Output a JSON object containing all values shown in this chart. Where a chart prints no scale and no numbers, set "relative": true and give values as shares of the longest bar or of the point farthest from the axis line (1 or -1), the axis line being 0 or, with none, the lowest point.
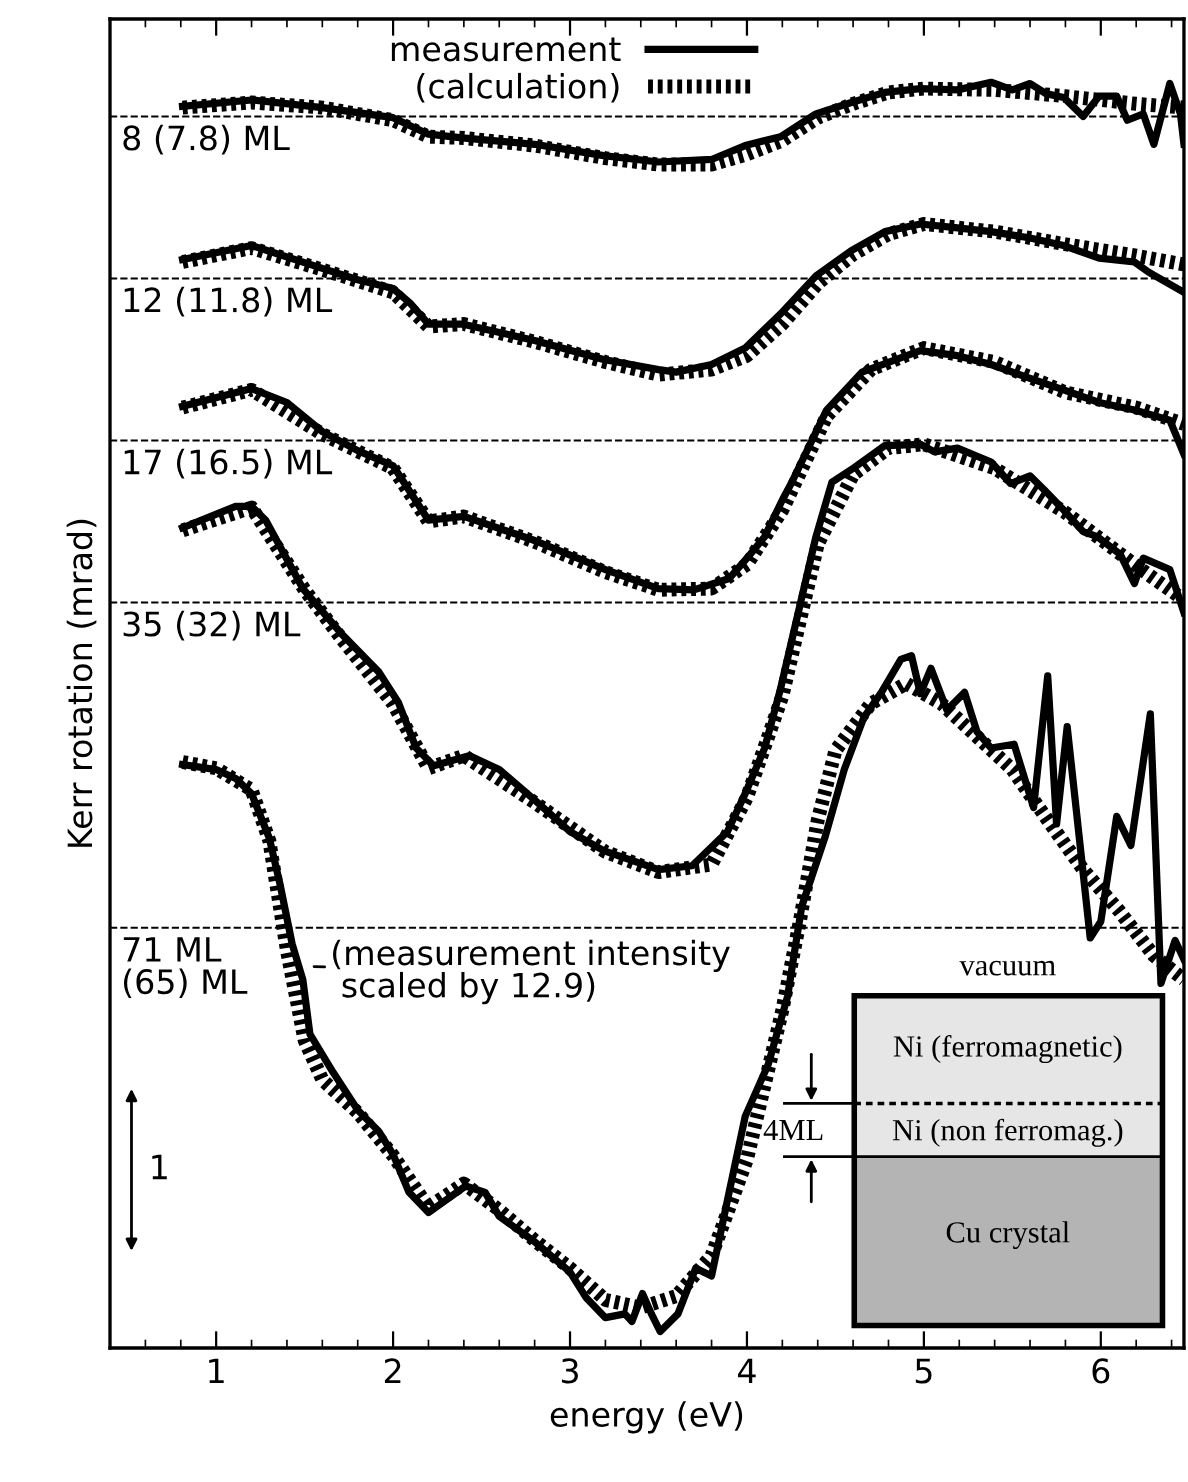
{
  "chart_data": {
    "type": "line",
    "relative": true,
    "xlabel": "energy (eV)",
    "ylabel": "Kerr rotation (mrad)",
    "xlim": [
      0.4,
      6.47
    ],
    "xticks": [
      1,
      2,
      3,
      4,
      5,
      6
    ],
    "tick_labels": "x",
    "grid": false,
    "legend": "top",
    "marker": "none",
    "series": [
      {
        "name": "(calculation)",
        "color": "#000000",
        "line_style": "dotted",
        "x": [
          0.81,
          1.2,
          1.6,
          2.0,
          2.2,
          2.4,
          2.8,
          3.2,
          3.5,
          3.8,
          4.0,
          4.2,
          4.4,
          4.6,
          4.8,
          5.0,
          5.4,
          5.8,
          6.2,
          6.47
        ],
        "values": [
          0.98,
          0.984,
          0.98,
          0.97,
          0.957,
          0.956,
          0.95,
          0.94,
          0.935,
          0.935,
          0.943,
          0.954,
          0.972,
          0.983,
          0.992,
          0.995,
          0.994,
          0.989,
          0.983,
          0.98
        ]
      },
      {
        "name": "measurement",
        "color": "#000000",
        "line_style": "solid",
        "x": [
          0.81,
          1.2,
          1.6,
          2.0,
          2.2,
          2.39,
          2.8,
          3.19,
          3.5,
          3.8,
          3.99,
          4.19,
          4.39,
          4.59,
          4.78,
          4.98,
          5.19,
          5.38,
          5.5,
          5.6,
          5.69,
          5.79,
          5.9,
          5.99,
          6.09,
          6.15,
          6.24,
          6.3,
          6.39,
          6.45,
          6.47
        ],
        "values": [
          0.981,
          0.986,
          0.98,
          0.972,
          0.959,
          0.956,
          0.951,
          0.942,
          0.937,
          0.939,
          0.95,
          0.957,
          0.975,
          0.984,
          0.992,
          0.995,
          0.994,
          1.0,
          0.994,
          0.999,
          0.991,
          0.988,
          0.973,
          0.989,
          0.989,
          0.97,
          0.975,
          0.951,
          0.999,
          0.975,
          0.951
        ]
      },
      {
        "color": "#000000",
        "line_style": "dotted",
        "x": [
          0.81,
          1.2,
          1.6,
          2.0,
          2.2,
          2.4,
          2.8,
          3.2,
          3.5,
          3.8,
          4.0,
          4.2,
          4.4,
          4.6,
          4.8,
          5.0,
          5.4,
          5.8,
          6.2,
          6.47
        ],
        "values": [
          0.858,
          0.869,
          0.852,
          0.834,
          0.807,
          0.809,
          0.795,
          0.779,
          0.769,
          0.773,
          0.784,
          0.809,
          0.841,
          0.864,
          0.88,
          0.888,
          0.882,
          0.872,
          0.863,
          0.856
        ]
      },
      {
        "color": "#000000",
        "line_style": "solid",
        "x": [
          0.81,
          1.2,
          1.6,
          1.8,
          2.0,
          2.1,
          2.2,
          2.39,
          2.8,
          3.19,
          3.5,
          3.6,
          3.8,
          3.99,
          4.19,
          4.39,
          4.59,
          4.78,
          4.98,
          5.19,
          5.38,
          5.6,
          5.79,
          5.99,
          6.19,
          6.27,
          6.47
        ],
        "values": [
          0.86,
          0.871,
          0.853,
          0.844,
          0.837,
          0.825,
          0.809,
          0.809,
          0.796,
          0.781,
          0.773,
          0.771,
          0.777,
          0.79,
          0.817,
          0.847,
          0.867,
          0.882,
          0.888,
          0.885,
          0.882,
          0.877,
          0.871,
          0.861,
          0.858,
          0.85,
          0.834
        ]
      },
      {
        "color": "#000000",
        "line_style": "dotted",
        "x": [
          0.81,
          1.2,
          1.6,
          2.0,
          2.2,
          2.4,
          2.8,
          3.2,
          3.5,
          3.8,
          4.0,
          4.2,
          4.45,
          4.7,
          5.0,
          5.4,
          5.8,
          6.2,
          6.47
        ],
        "values": [
          0.743,
          0.757,
          0.722,
          0.695,
          0.653,
          0.657,
          0.637,
          0.613,
          0.599,
          0.6,
          0.619,
          0.662,
          0.736,
          0.773,
          0.79,
          0.779,
          0.755,
          0.743,
          0.73
        ]
      },
      {
        "color": "#000000",
        "line_style": "solid",
        "x": [
          0.81,
          1.2,
          1.4,
          1.6,
          1.8,
          2.0,
          2.2,
          2.4,
          2.8,
          3.2,
          3.5,
          3.7,
          3.9,
          4.0,
          4.1,
          4.2,
          4.25,
          4.45,
          4.65,
          4.98,
          5.19,
          5.38,
          5.6,
          5.79,
          5.99,
          6.19,
          6.39,
          6.47
        ],
        "values": [
          0.744,
          0.758,
          0.747,
          0.724,
          0.709,
          0.697,
          0.654,
          0.657,
          0.638,
          0.615,
          0.6,
          0.599,
          0.608,
          0.624,
          0.641,
          0.67,
          0.683,
          0.741,
          0.771,
          0.788,
          0.784,
          0.777,
          0.766,
          0.757,
          0.747,
          0.741,
          0.733,
          0.706
        ]
      },
      {
        "color": "#000000",
        "line_style": "dotted",
        "x": [
          0.81,
          1.2,
          1.5,
          1.7,
          2.0,
          2.2,
          2.4,
          2.8,
          3.2,
          3.5,
          3.8,
          4.0,
          4.2,
          4.4,
          4.6,
          4.8,
          5.0,
          5.4,
          5.8,
          6.2,
          6.47
        ],
        "values": [
          0.646,
          0.664,
          0.599,
          0.562,
          0.509,
          0.458,
          0.468,
          0.431,
          0.392,
          0.376,
          0.382,
          0.435,
          0.515,
          0.635,
          0.69,
          0.711,
          0.714,
          0.695,
          0.66,
          0.618,
          0.591
        ]
      },
      {
        "color": "#000000",
        "line_style": "solid",
        "x": [
          0.81,
          1.11,
          1.2,
          1.28,
          1.49,
          1.71,
          1.92,
          2.03,
          2.13,
          2.23,
          2.43,
          2.6,
          2.8,
          3.0,
          3.19,
          3.5,
          3.69,
          3.89,
          3.99,
          4.1,
          4.19,
          4.29,
          4.39,
          4.48,
          4.59,
          4.78,
          4.98,
          5.06,
          5.19,
          5.38,
          5.49,
          5.6,
          5.68,
          5.79,
          5.9,
          5.98,
          6.11,
          6.19,
          6.24,
          6.39,
          6.47
        ],
        "values": [
          0.648,
          0.665,
          0.665,
          0.654,
          0.6,
          0.564,
          0.534,
          0.51,
          0.474,
          0.46,
          0.468,
          0.457,
          0.433,
          0.408,
          0.393,
          0.378,
          0.381,
          0.408,
          0.438,
          0.474,
          0.521,
          0.581,
          0.641,
          0.684,
          0.694,
          0.713,
          0.714,
          0.708,
          0.711,
          0.7,
          0.683,
          0.689,
          0.678,
          0.662,
          0.645,
          0.641,
          0.627,
          0.604,
          0.624,
          0.615,
          0.581
        ]
      },
      {
        "color": "#000000",
        "line_style": "dotted",
        "x": [
          0.81,
          1.0,
          1.2,
          1.3,
          1.4,
          1.5,
          1.6,
          1.8,
          2.0,
          2.2,
          2.4,
          2.6,
          2.8,
          3.0,
          3.2,
          3.4,
          3.6,
          3.8,
          4.0,
          4.2,
          4.3,
          4.4,
          4.5,
          4.7,
          4.9,
          5.1,
          5.3,
          5.5,
          5.7,
          5.9,
          6.1,
          6.3,
          6.47
        ],
        "values": [
          0.463,
          0.458,
          0.441,
          0.401,
          0.314,
          0.243,
          0.212,
          0.186,
          0.152,
          0.111,
          0.13,
          0.109,
          0.085,
          0.063,
          0.038,
          0.032,
          0.041,
          0.073,
          0.149,
          0.267,
          0.338,
          0.417,
          0.472,
          0.509,
          0.525,
          0.509,
          0.483,
          0.457,
          0.417,
          0.378,
          0.346,
          0.31,
          0.291
        ]
      },
      {
        "color": "#000000",
        "line_style": "solid",
        "x": [
          0.81,
          1.0,
          1.11,
          1.2,
          1.3,
          1.36,
          1.43,
          1.49,
          1.53,
          1.66,
          1.8,
          1.92,
          2.0,
          2.09,
          2.2,
          2.41,
          2.52,
          2.6,
          2.8,
          3.0,
          3.09,
          3.2,
          3.31,
          3.35,
          3.41,
          3.46,
          3.51,
          3.61,
          3.71,
          3.8,
          3.89,
          3.99,
          4.12,
          4.23,
          4.27,
          4.31,
          4.44,
          4.55,
          4.66,
          4.76,
          4.87,
          4.93,
          4.98,
          5.04,
          5.13,
          5.23,
          5.3,
          5.38,
          5.51,
          5.62,
          5.7,
          5.75,
          5.81,
          5.94,
          6.0,
          6.09,
          6.17,
          6.28,
          6.34,
          6.42,
          6.47
        ],
        "values": [
          0.461,
          0.457,
          0.45,
          0.438,
          0.403,
          0.367,
          0.319,
          0.291,
          0.248,
          0.218,
          0.188,
          0.171,
          0.153,
          0.123,
          0.107,
          0.128,
          0.123,
          0.104,
          0.084,
          0.06,
          0.04,
          0.024,
          0.027,
          0.021,
          0.043,
          0.027,
          0.013,
          0.027,
          0.063,
          0.057,
          0.117,
          0.183,
          0.224,
          0.278,
          0.314,
          0.349,
          0.403,
          0.457,
          0.498,
          0.518,
          0.544,
          0.547,
          0.517,
          0.537,
          0.504,
          0.518,
          0.487,
          0.474,
          0.477,
          0.427,
          0.531,
          0.414,
          0.491,
          0.324,
          0.337,
          0.42,
          0.397,
          0.501,
          0.288,
          0.322,
          0.307
        ]
      }
    ],
    "ref_lines": [
      {
        "axis": "y",
        "value": 0.973,
        "line_style": "dashed",
        "color": "#000000"
      },
      {
        "axis": "y",
        "value": 0.845,
        "line_style": "dashed",
        "color": "#000000"
      },
      {
        "axis": "y",
        "value": 0.717,
        "line_style": "dashed",
        "color": "#000000"
      },
      {
        "axis": "y",
        "value": 0.589,
        "line_style": "dashed",
        "color": "#000000"
      },
      {
        "axis": "y",
        "value": 0.332,
        "line_style": "dashed",
        "color": "#000000"
      }
    ],
    "annotations": [
      "8 (7.8) ML",
      "12 (11.8) ML",
      "17 (16.5) ML",
      "35 (32) ML",
      "71 ML\n(65) ML",
      "(measurement intensity\n scaled by 12.9)",
      "1",
      "vacuum",
      "Ni (ferromagnetic)",
      "Ni (non ferromag.)",
      "4ML",
      "Cu crystal"
    ]
  }
}
